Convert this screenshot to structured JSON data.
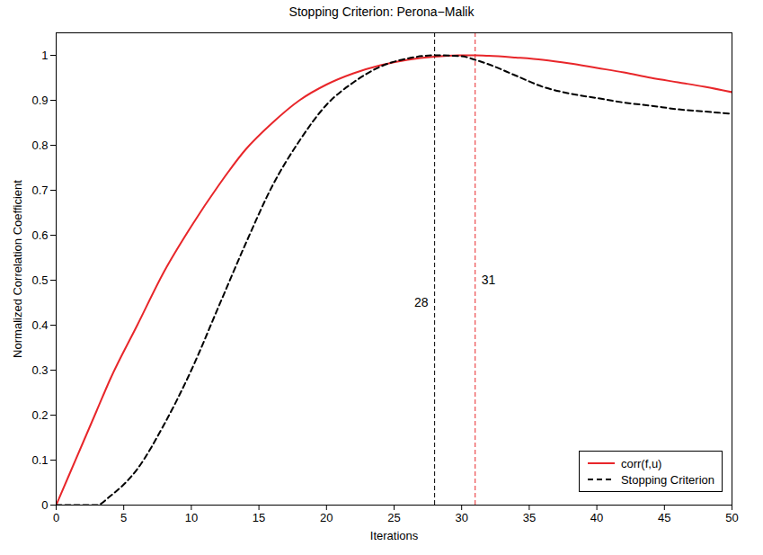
{
  "chart_data": {
    "type": "line",
    "title": "Stopping Criterion: Perona−Malik",
    "x_label": "Iterations",
    "y_label": "Normalized Correlation Coefficient",
    "x": [
      0,
      2,
      3,
      4,
      6,
      8,
      10,
      12,
      14,
      16,
      18,
      20,
      22,
      24,
      26,
      28,
      30,
      31,
      32,
      34,
      36,
      38,
      40,
      42,
      44,
      46,
      48,
      50
    ],
    "series": [
      {
        "name": "corr(f,u)",
        "color": "#e8262a",
        "line_style": "solid",
        "values": [
          0,
          0.14,
          0.21,
          0.28,
          0.4,
          0.52,
          0.62,
          0.71,
          0.79,
          0.85,
          0.9,
          0.935,
          0.96,
          0.978,
          0.99,
          0.997,
          1.0,
          1.0,
          0.999,
          0.995,
          0.99,
          0.982,
          0.972,
          0.962,
          0.95,
          0.94,
          0.93,
          0.918
        ]
      },
      {
        "name": "Stopping Criterion",
        "color": "#000000",
        "line_style": "dashed",
        "values": [
          0,
          0,
          0,
          0.02,
          0.08,
          0.18,
          0.3,
          0.44,
          0.58,
          0.71,
          0.81,
          0.89,
          0.94,
          0.975,
          0.993,
          1.0,
          0.998,
          0.99,
          0.98,
          0.955,
          0.93,
          0.915,
          0.905,
          0.895,
          0.888,
          0.88,
          0.875,
          0.87
        ]
      }
    ],
    "annotations": [
      {
        "x": 28,
        "y": 0.45,
        "label": "28",
        "color": "#000000"
      },
      {
        "x": 31,
        "y": 0.5,
        "label": "31",
        "color": "#e8262a"
      }
    ],
    "xlim": [
      0,
      50
    ],
    "xticks": [
      0,
      5,
      10,
      15,
      20,
      25,
      30,
      35,
      40,
      45,
      50
    ],
    "ylim": [
      0,
      1.05
    ],
    "yticks": [
      0,
      0.1,
      0.2,
      0.3,
      0.4,
      0.5,
      0.6,
      0.7,
      0.8,
      0.9,
      1
    ],
    "grid": false,
    "legend": "lower right"
  }
}
